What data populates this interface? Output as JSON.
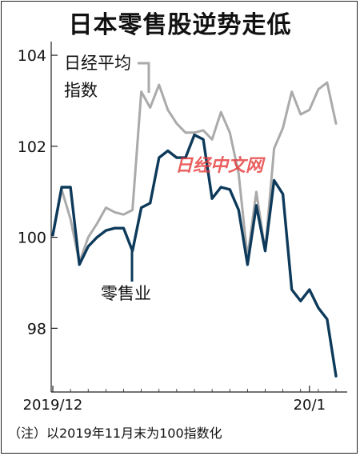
{
  "title": "日本零售股逆势走低",
  "note": "（注）以2019年11月末为100指数化",
  "watermark": "日经中文网",
  "chart_data": {
    "type": "line",
    "title": "日本零售股逆势走低",
    "y_ticks": [
      "104",
      "102",
      "100",
      "98"
    ],
    "ylim": [
      96.6,
      104.3
    ],
    "x_ticks": [
      "2019/12",
      "20/1"
    ],
    "x_tick_index": [
      0,
      29
    ],
    "grid": false,
    "series": [
      {
        "name": "日经平均指数",
        "legend_label_line1": "日经平均",
        "legend_label_line2": "指数",
        "color": "#aaaaaa",
        "values": [
          100.05,
          101.05,
          100.4,
          99.45,
          100.0,
          100.3,
          100.65,
          100.55,
          100.5,
          100.6,
          103.2,
          102.85,
          103.35,
          102.8,
          102.5,
          102.3,
          102.3,
          102.35,
          102.15,
          102.75,
          102.3,
          101.4,
          99.55,
          101.0,
          99.7,
          101.95,
          102.4,
          103.2,
          102.7,
          102.8,
          103.25,
          103.4,
          102.5
        ],
        "value_label": "日经平均指数"
      },
      {
        "name": "零售业",
        "legend_label": "零售业",
        "color": "#0d3a5a",
        "values": [
          100.05,
          101.1,
          101.1,
          99.4,
          99.8,
          100.0,
          100.15,
          100.2,
          100.2,
          99.7,
          100.65,
          100.75,
          101.75,
          101.9,
          101.75,
          101.75,
          102.25,
          102.15,
          100.85,
          101.1,
          101.05,
          100.6,
          99.4,
          100.7,
          99.7,
          101.25,
          100.95,
          98.85,
          98.6,
          98.85,
          98.45,
          98.2,
          96.95
        ],
        "value_label": "零售业"
      }
    ]
  }
}
